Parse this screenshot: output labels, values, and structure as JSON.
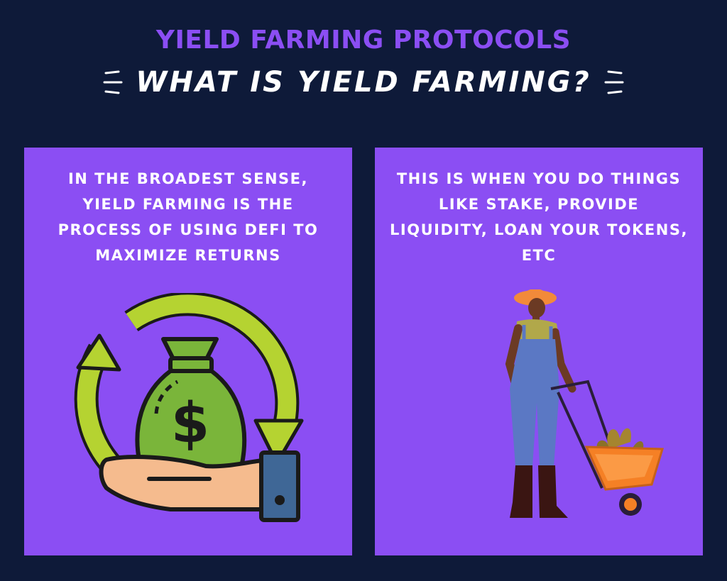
{
  "header": {
    "title": "YIELD FARMING PROTOCOLS",
    "subtitle": "WHAT IS YIELD FARMING?"
  },
  "cards": [
    {
      "text": "IN THE BROADEST SENSE, YIELD FARMING IS THE PROCESS OF USING DEFI TO MAXIMIZE RETURNS",
      "illustration": "money-bag-cycle-icon"
    },
    {
      "text": "THIS IS WHEN YOU DO THINGS LIKE STAKE, PROVIDE LIQUIDITY, LOAN YOUR TOKENS, ETC",
      "illustration": "farmer-wheelbarrow-illustration"
    }
  ],
  "colors": {
    "background": "#0e1a39",
    "accent": "#8b4ef3",
    "text": "#ffffff"
  }
}
